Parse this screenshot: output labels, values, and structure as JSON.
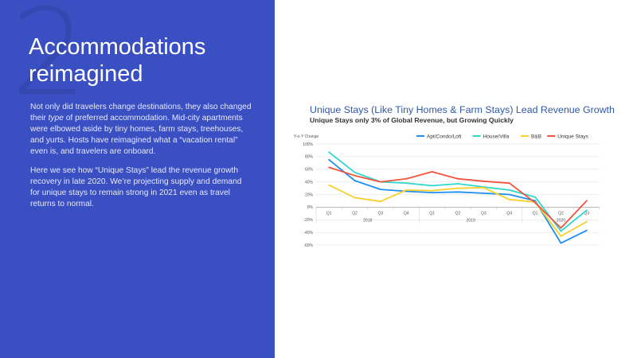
{
  "slide": {
    "number": "2",
    "title": "Accommodations reimagined",
    "paragraph1_a": "Not only did travelers change destinations, they also changed their ",
    "paragraph1_em": "type",
    "paragraph1_b": " of preferred accommodation. Mid-city apartments were elbowed aside by tiny homes, farm stays, treehouses, and yurts. Hosts have reimagined what a “vacation rental” even is, and travelers are onboard.",
    "paragraph2": "Here we see how “Unique Stays” lead the revenue growth recovery in late 2020. We’re projecting supply and demand for unique stays to remain strong in 2021 even as travel returns to normal.",
    "background_color": "#3a4fc1"
  },
  "chart_data": {
    "type": "line",
    "title": "Unique Stays (Like Tiny Homes & Farm Stays) Lead Revenue Growth",
    "subtitle": "Unique Stays only 3% of Global Revenue, but Growing Quickly",
    "ylabel": "Y-o-Y Change",
    "ylim": [
      -60,
      100
    ],
    "yticks": [
      "100%",
      "80%",
      "60%",
      "40%",
      "20%",
      "0%",
      "-20%",
      "-40%",
      "-60%"
    ],
    "ytick_values": [
      100,
      80,
      60,
      40,
      20,
      0,
      -20,
      -40,
      -60
    ],
    "categories": [
      "Q1",
      "Q2",
      "Q3",
      "Q4",
      "Q1",
      "Q2",
      "Q3",
      "Q4",
      "Q1",
      "Q2",
      "Q3"
    ],
    "year_groups": [
      {
        "label": "2018",
        "start": 0,
        "end": 3
      },
      {
        "label": "2019",
        "start": 4,
        "end": 7
      },
      {
        "label": "2020",
        "start": 8,
        "end": 10
      }
    ],
    "grid": true,
    "legend_position": "top",
    "series": [
      {
        "name": "Apt/Condo/Loft",
        "color": "#1f8ff0",
        "values": [
          75,
          42,
          28,
          25,
          23,
          24,
          22,
          20,
          10,
          -57,
          -37
        ]
      },
      {
        "name": "House/Villa",
        "color": "#2fd8cc",
        "values": [
          87,
          55,
          40,
          38,
          34,
          37,
          32,
          27,
          16,
          -38,
          -5
        ]
      },
      {
        "name": "B&B",
        "color": "#f7d02c",
        "values": [
          35,
          15,
          9,
          27,
          26,
          30,
          31,
          12,
          8,
          -46,
          -23
        ]
      },
      {
        "name": "Unique Stays",
        "color": "#f0533e",
        "values": [
          63,
          50,
          40,
          45,
          56,
          45,
          41,
          38,
          7,
          -33,
          10
        ]
      }
    ]
  }
}
